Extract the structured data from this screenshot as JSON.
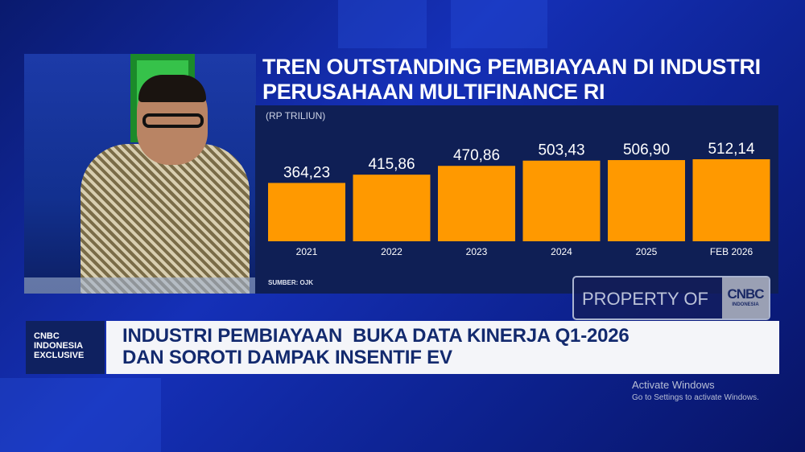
{
  "chart_data": {
    "type": "bar",
    "title": "TREN OUTSTANDING PEMBIAYAAN DI INDUSTRI PERUSAHAAN MULTIFINANCE RI",
    "title_lines": [
      "TREN OUTSTANDING PEMBIAYAAN DI INDUSTRI",
      "PERUSAHAAN MULTIFINANCE RI"
    ],
    "ylabel": "(RP TRILIUN)",
    "categories": [
      "2021",
      "2022",
      "2023",
      "2024",
      "2025",
      "FEB 2026"
    ],
    "values": [
      364.23,
      415.86,
      470.86,
      503.43,
      506.9,
      512.14
    ],
    "data_labels": [
      "364,23",
      "415,86",
      "470,86",
      "503,43",
      "506,90",
      "512,14"
    ],
    "source": "SUMBER: OJK",
    "bar_color": "#FF9900",
    "grid": false,
    "ylim": [
      0,
      512.14
    ]
  },
  "watermark": {
    "text": "PROPERTY OF",
    "logo_main": "CNBC",
    "logo_sub": "INDONESIA"
  },
  "badge": {
    "lines": [
      "CNBC",
      "INDONESIA",
      "EXCLUSIVE"
    ]
  },
  "headline": {
    "lines": [
      "INDUSTRI PEMBIAYAAN  BUKA DATA KINERJA Q1-2026",
      "DAN SOROTI DAMPAK INSENTIF EV"
    ]
  },
  "activate": {
    "title": "Activate Windows",
    "subtitle": "Go to Settings to activate Windows."
  }
}
